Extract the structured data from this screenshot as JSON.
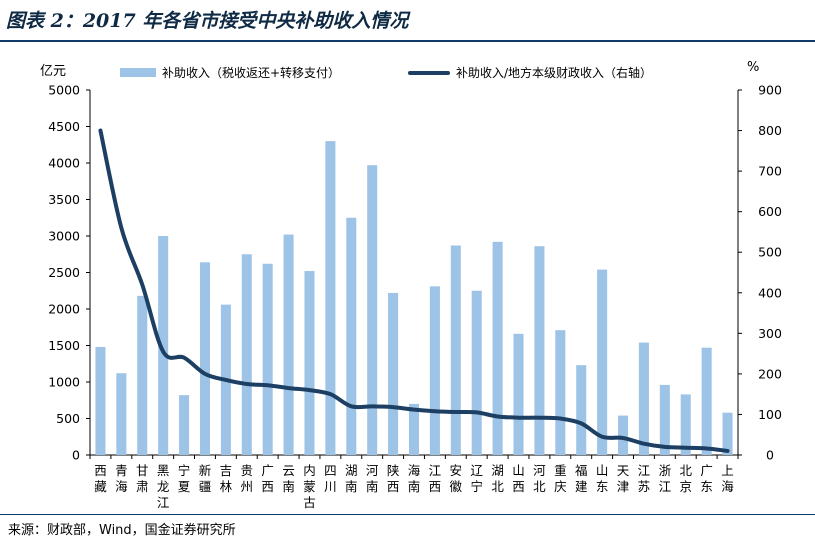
{
  "header": {
    "title": "图表 2：2017 年各省市接受中央补助收入情况"
  },
  "footer": {
    "source": "来源：财政部，Wind，国金证券研究所"
  },
  "chart_data": {
    "type": "bar",
    "title": "图表 2：2017 年各省市接受中央补助收入情况",
    "ylabel": "亿元",
    "y2label": "%",
    "ylim": [
      0,
      5000
    ],
    "y2lim": [
      0,
      900
    ],
    "yticks": [
      0,
      500,
      1000,
      1500,
      2000,
      2500,
      3000,
      3500,
      4000,
      4500,
      5000
    ],
    "y2ticks": [
      0,
      100,
      200,
      300,
      400,
      500,
      600,
      700,
      800,
      900
    ],
    "legend_position": "top",
    "categories": [
      "西藏",
      "青海",
      "甘肃",
      "黑龙江",
      "宁夏",
      "新疆",
      "吉林",
      "贵州",
      "广西",
      "云南",
      "内蒙古",
      "四川",
      "湖南",
      "河南",
      "陕西",
      "海南",
      "江西",
      "安徽",
      "辽宁",
      "湖北",
      "山西",
      "河北",
      "重庆",
      "福建",
      "山东",
      "天津",
      "江苏",
      "浙江",
      "北京",
      "广东",
      "上海"
    ],
    "series": [
      {
        "name": "补助收入（税收返还+转移支付）",
        "type": "bar",
        "axis": "left",
        "color": "#9dc3e6",
        "values": [
          1480,
          1120,
          2180,
          3000,
          820,
          2640,
          2060,
          2750,
          2620,
          3020,
          2520,
          4300,
          3250,
          3970,
          2220,
          700,
          2310,
          2870,
          2250,
          2920,
          1660,
          2860,
          1710,
          1230,
          2540,
          540,
          1540,
          960,
          830,
          1470,
          580
        ]
      },
      {
        "name": "补助收入/地方本级财政收入（右轴）",
        "type": "line",
        "axis": "right",
        "color": "#1c3f63",
        "values": [
          800,
          560,
          420,
          255,
          240,
          200,
          185,
          175,
          172,
          165,
          160,
          150,
          120,
          120,
          118,
          112,
          108,
          106,
          105,
          95,
          92,
          92,
          90,
          78,
          45,
          42,
          28,
          20,
          18,
          16,
          10
        ]
      }
    ]
  }
}
